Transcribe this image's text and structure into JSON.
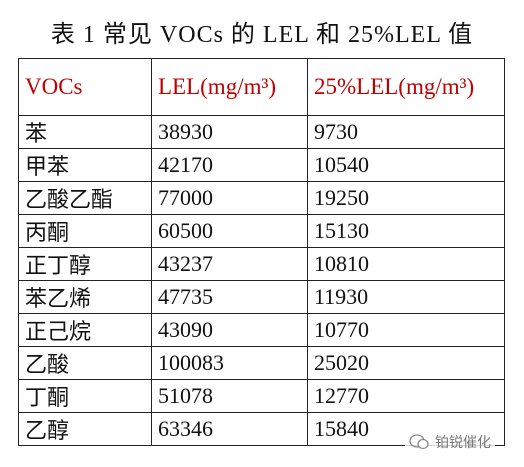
{
  "title": "表 1 常见 VOCs 的 LEL 和 25%LEL 值",
  "table": {
    "header": [
      "VOCs",
      "LEL(mg/m³)",
      "25%LEL(mg/m³)"
    ],
    "rows": [
      [
        "苯",
        "38930",
        "9730"
      ],
      [
        "甲苯",
        "42170",
        "10540"
      ],
      [
        "乙酸乙酯",
        "77000",
        "19250"
      ],
      [
        "丙酮",
        "60500",
        "15130"
      ],
      [
        "正丁醇",
        "43237",
        "10810"
      ],
      [
        "苯乙烯",
        "47735",
        "11930"
      ],
      [
        "正己烷",
        "43090",
        "10770"
      ],
      [
        "乙酸",
        "100083",
        "25020"
      ],
      [
        "丁酮",
        "51078",
        "12770"
      ],
      [
        "乙醇",
        "63346",
        "15840"
      ]
    ]
  },
  "watermark": "铂锐催化"
}
